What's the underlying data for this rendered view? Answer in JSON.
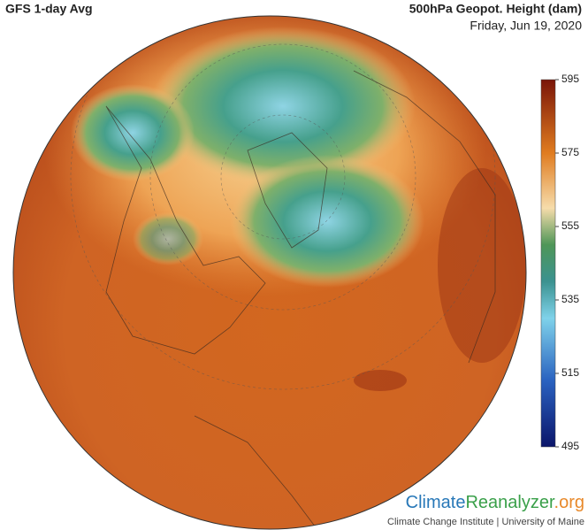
{
  "header": {
    "title": "GFS 1-day Avg",
    "variable": "500hPa Geopot. Height (dam)",
    "date": "Friday, Jun 19, 2020"
  },
  "colorbar": {
    "range": [
      495,
      595
    ],
    "ticks": [
      595,
      575,
      555,
      535,
      515,
      495
    ]
  },
  "logo": {
    "parts": [
      "Climate",
      "Reanalyzer",
      ".org"
    ],
    "subtitle": "Climate Change Institute | University of Maine"
  }
}
